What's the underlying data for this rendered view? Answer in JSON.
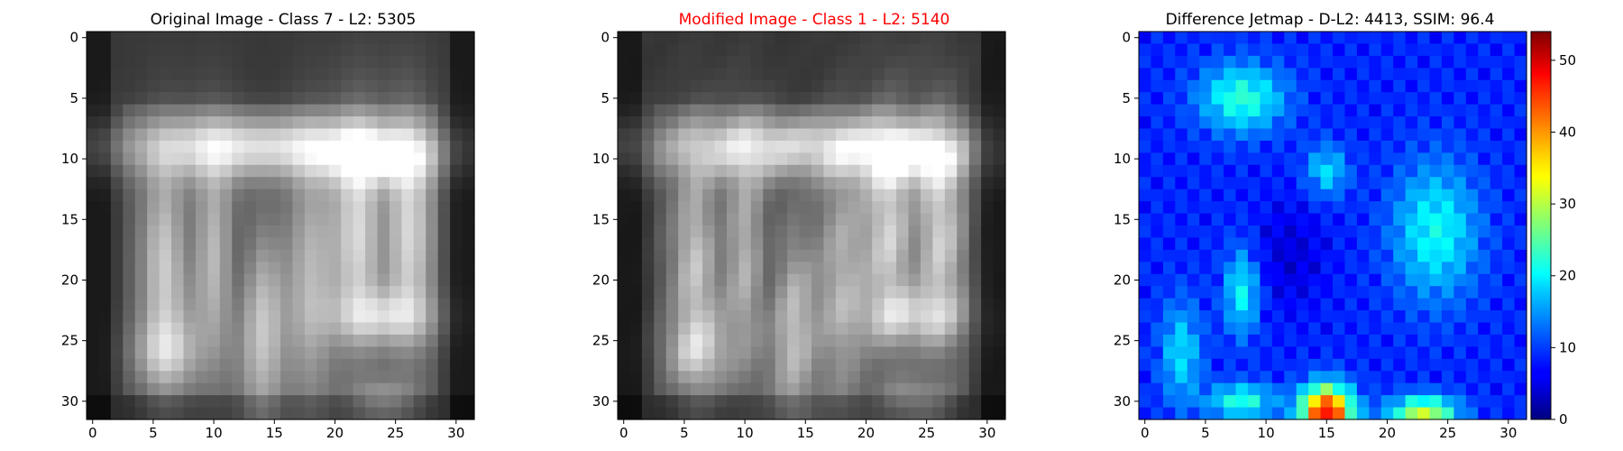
{
  "panels": [
    {
      "title": "Original Image - Class 7 - L2: 5305",
      "title_color": "#000000",
      "colormap": "gray",
      "rows": 32,
      "cols": 32,
      "x_ticks": [
        "0",
        "5",
        "10",
        "15",
        "20",
        "25",
        "30"
      ],
      "y_ticks": [
        "0",
        "5",
        "10",
        "15",
        "20",
        "25",
        "30"
      ]
    },
    {
      "title": "Modified Image - Class 1 - L2: 5140",
      "title_color": "#ff0000",
      "colormap": "gray",
      "rows": 32,
      "cols": 32,
      "x_ticks": [
        "0",
        "5",
        "10",
        "15",
        "20",
        "25",
        "30"
      ],
      "y_ticks": [
        "0",
        "5",
        "10",
        "15",
        "20",
        "25",
        "30"
      ]
    },
    {
      "title": "Difference Jetmap - D-L2: 4413, SSIM: 96.4",
      "title_color": "#000000",
      "colormap": "jet",
      "rows": 32,
      "cols": 32,
      "x_ticks": [
        "0",
        "5",
        "10",
        "15",
        "20",
        "25",
        "30"
      ],
      "y_ticks": [
        "0",
        "5",
        "10",
        "15",
        "20",
        "25",
        "30"
      ]
    }
  ],
  "colorbar": {
    "colormap": "jet",
    "min": 0,
    "max": 54,
    "ticks": [
      "0",
      "10",
      "20",
      "30",
      "40",
      "50"
    ]
  }
}
